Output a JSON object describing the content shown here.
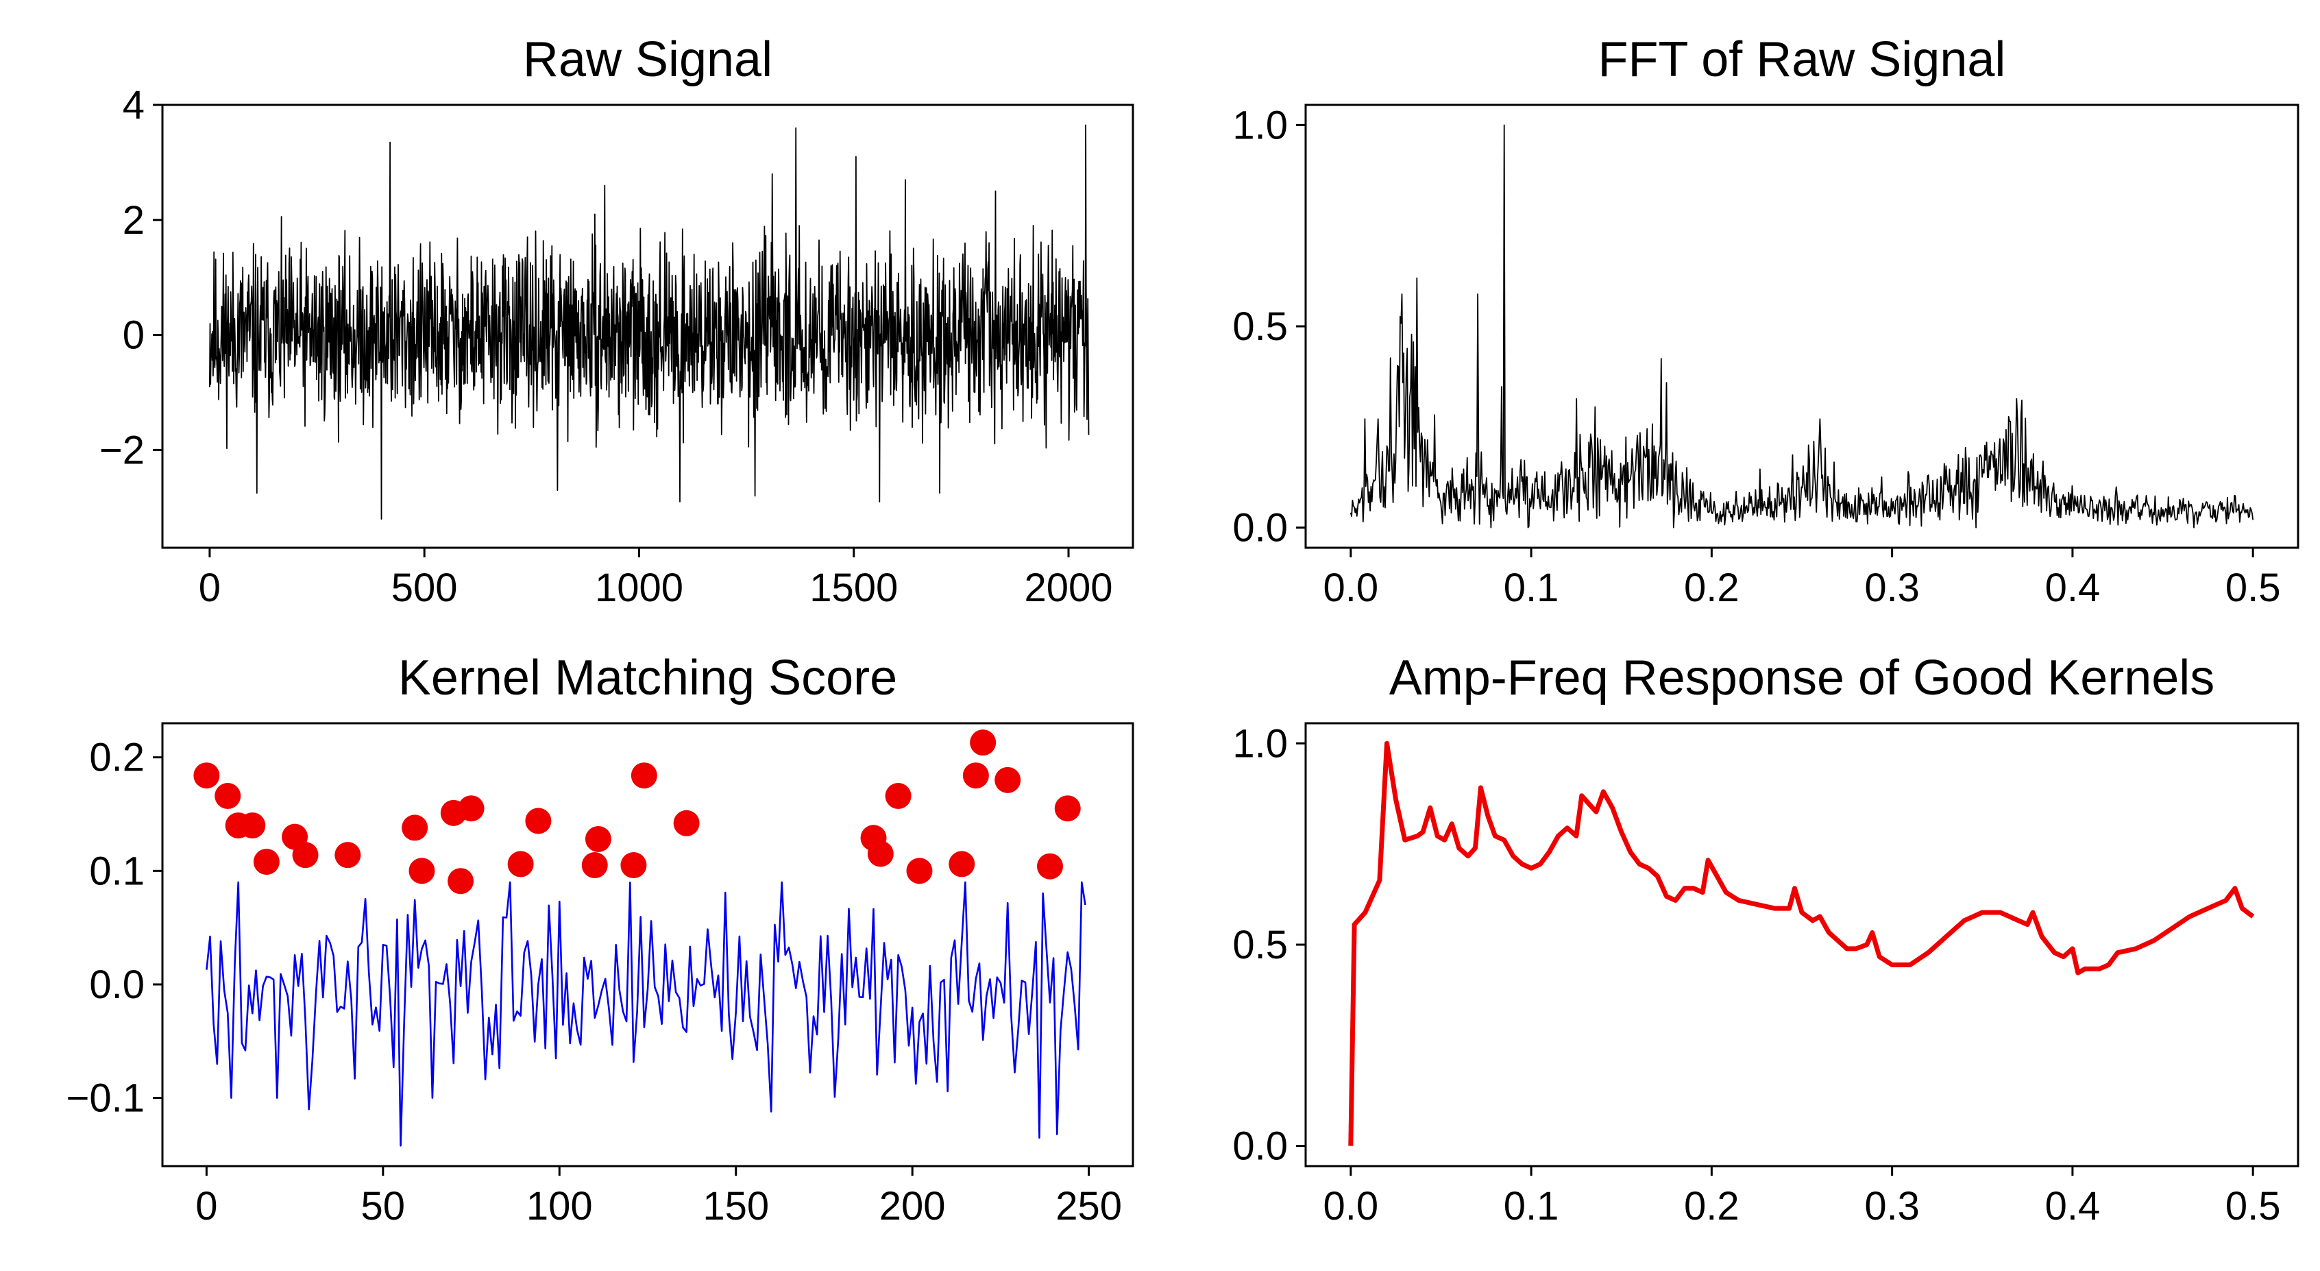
{
  "figure": {
    "background": "#ffffff"
  },
  "chart_data": [
    {
      "type": "line",
      "title": "Raw Signal",
      "xlabel": "",
      "ylabel": "",
      "xlim": [
        -110,
        2150
      ],
      "ylim": [
        -3.7,
        4.0
      ],
      "xticks": [
        0,
        500,
        1000,
        1500,
        2000
      ],
      "xtick_labels": [
        "0",
        "500",
        "1000",
        "1500",
        "2000"
      ],
      "yticks": [
        -2,
        0,
        2,
        4
      ],
      "ytick_labels": [
        "−2",
        "0",
        "2",
        "4"
      ],
      "grid": false,
      "series": [
        {
          "color": "#000000",
          "style": "thin-line",
          "generator": "noise",
          "n": 2048,
          "x_start": 0,
          "x_end": 2047,
          "base": 0,
          "noise_amp": 0.9,
          "bounds": [
            -3.2,
            3.6
          ],
          "seed": 11,
          "spikes": [
            {
              "x": 400,
              "y": -3.2
            },
            {
              "x": 420,
              "y": 3.35
            },
            {
              "x": 1365,
              "y": 3.6
            },
            {
              "x": 2040,
              "y": 3.65
            },
            {
              "x": 1505,
              "y": 3.1
            },
            {
              "x": 1310,
              "y": 2.8
            },
            {
              "x": 1095,
              "y": -2.9
            },
            {
              "x": 1270,
              "y": -2.8
            },
            {
              "x": 1560,
              "y": -2.9
            },
            {
              "x": 810,
              "y": -2.7
            },
            {
              "x": 110,
              "y": -2.75
            },
            {
              "x": 920,
              "y": 2.6
            },
            {
              "x": 1620,
              "y": 2.7
            },
            {
              "x": 1700,
              "y": -2.75
            },
            {
              "x": 1830,
              "y": 2.5
            }
          ]
        }
      ]
    },
    {
      "type": "line",
      "title": "FFT of Raw Signal",
      "xlabel": "",
      "ylabel": "",
      "xlim": [
        -0.025,
        0.525
      ],
      "ylim": [
        -0.05,
        1.05
      ],
      "xticks": [
        0.0,
        0.1,
        0.2,
        0.3,
        0.4,
        0.5
      ],
      "xtick_labels": [
        "0.0",
        "0.1",
        "0.2",
        "0.3",
        "0.4",
        "0.5"
      ],
      "yticks": [
        0.0,
        0.5,
        1.0
      ],
      "ytick_labels": [
        "0.0",
        "0.5",
        "1.0"
      ],
      "grid": false,
      "series": [
        {
          "color": "#000000",
          "style": "thin-line",
          "generator": "envelope-noise",
          "n": 1024,
          "x_start": 0.0,
          "x_end": 0.5,
          "noise_amp": 0.12,
          "bounds": [
            0.0,
            1.0
          ],
          "seed": 7,
          "envelope": [
            [
              0.0,
              0.03
            ],
            [
              0.01,
              0.09
            ],
            [
              0.02,
              0.13
            ],
            [
              0.03,
              0.3
            ],
            [
              0.04,
              0.2
            ],
            [
              0.05,
              0.07
            ],
            [
              0.06,
              0.08
            ],
            [
              0.07,
              0.1
            ],
            [
              0.09,
              0.08
            ],
            [
              0.1,
              0.08
            ],
            [
              0.12,
              0.1
            ],
            [
              0.13,
              0.14
            ],
            [
              0.15,
              0.1
            ],
            [
              0.17,
              0.17
            ],
            [
              0.18,
              0.1
            ],
            [
              0.2,
              0.04
            ],
            [
              0.22,
              0.05
            ],
            [
              0.24,
              0.06
            ],
            [
              0.26,
              0.12
            ],
            [
              0.27,
              0.06
            ],
            [
              0.3,
              0.05
            ],
            [
              0.32,
              0.08
            ],
            [
              0.35,
              0.11
            ],
            [
              0.37,
              0.17
            ],
            [
              0.38,
              0.09
            ],
            [
              0.4,
              0.05
            ],
            [
              0.45,
              0.04
            ],
            [
              0.5,
              0.04
            ]
          ],
          "spikes": [
            {
              "x": 0.0852,
              "y": 1.0
            },
            {
              "x": 0.0365,
              "y": 0.62
            },
            {
              "x": 0.0285,
              "y": 0.58
            },
            {
              "x": 0.0705,
              "y": 0.58
            },
            {
              "x": 0.0335,
              "y": 0.48
            },
            {
              "x": 0.0262,
              "y": 0.4
            },
            {
              "x": 0.0838,
              "y": 0.35
            },
            {
              "x": 0.172,
              "y": 0.42
            },
            {
              "x": 0.175,
              "y": 0.36
            },
            {
              "x": 0.369,
              "y": 0.32
            },
            {
              "x": 0.26,
              "y": 0.27
            },
            {
              "x": 0.125,
              "y": 0.32
            },
            {
              "x": 0.008,
              "y": 0.27
            },
            {
              "x": 0.015,
              "y": 0.27
            },
            {
              "x": 0.0465,
              "y": 0.28
            },
            {
              "x": 0.1355,
              "y": 0.3
            }
          ]
        }
      ]
    },
    {
      "type": "line",
      "title": "Kernel Matching Score",
      "xlabel": "",
      "ylabel": "",
      "xlim": [
        -12.5,
        262.5
      ],
      "ylim": [
        -0.16,
        0.23
      ],
      "xticks": [
        0,
        50,
        100,
        150,
        200,
        250
      ],
      "xtick_labels": [
        "0",
        "50",
        "100",
        "150",
        "200",
        "250"
      ],
      "yticks": [
        -0.1,
        0.0,
        0.1,
        0.2
      ],
      "ytick_labels": [
        "−0.1",
        "0.0",
        "0.1",
        "0.2"
      ],
      "grid": false,
      "series": [
        {
          "color": "#0000ee",
          "style": "line",
          "generator": "noise",
          "n": 250,
          "x_start": 0,
          "x_end": 249,
          "base": 0.0,
          "noise_amp": 0.05,
          "bounds": [
            -0.1,
            0.09
          ],
          "seed": 3,
          "spikes": [
            {
              "x": 55,
              "y": -0.142
            },
            {
              "x": 236,
              "y": -0.135
            },
            {
              "x": 241,
              "y": -0.132
            },
            {
              "x": 160,
              "y": -0.112
            },
            {
              "x": 7,
              "y": -0.1
            },
            {
              "x": 20,
              "y": -0.1
            },
            {
              "x": 29,
              "y": -0.11
            },
            {
              "x": 64,
              "y": -0.1
            },
            {
              "x": 249,
              "y": 0.07
            },
            {
              "x": 3,
              "y": -0.07
            }
          ]
        }
      ],
      "markers": {
        "color": "#ee0000",
        "points": [
          {
            "x": 0,
            "y": 0.184
          },
          {
            "x": 6,
            "y": 0.166
          },
          {
            "x": 9,
            "y": 0.14
          },
          {
            "x": 13,
            "y": 0.14
          },
          {
            "x": 17,
            "y": 0.108
          },
          {
            "x": 25,
            "y": 0.13
          },
          {
            "x": 28,
            "y": 0.114
          },
          {
            "x": 40,
            "y": 0.114
          },
          {
            "x": 59,
            "y": 0.138
          },
          {
            "x": 61,
            "y": 0.1
          },
          {
            "x": 70,
            "y": 0.151
          },
          {
            "x": 72,
            "y": 0.091
          },
          {
            "x": 75,
            "y": 0.155
          },
          {
            "x": 89,
            "y": 0.106
          },
          {
            "x": 94,
            "y": 0.144
          },
          {
            "x": 110,
            "y": 0.105
          },
          {
            "x": 111,
            "y": 0.128
          },
          {
            "x": 121,
            "y": 0.105
          },
          {
            "x": 124,
            "y": 0.184
          },
          {
            "x": 136,
            "y": 0.142
          },
          {
            "x": 189,
            "y": 0.129
          },
          {
            "x": 191,
            "y": 0.115
          },
          {
            "x": 196,
            "y": 0.166
          },
          {
            "x": 202,
            "y": 0.1
          },
          {
            "x": 214,
            "y": 0.106
          },
          {
            "x": 218,
            "y": 0.184
          },
          {
            "x": 220,
            "y": 0.213
          },
          {
            "x": 227,
            "y": 0.18
          },
          {
            "x": 239,
            "y": 0.104
          },
          {
            "x": 244,
            "y": 0.155
          }
        ]
      }
    },
    {
      "type": "line",
      "title": "Amp-Freq Response of Good Kernels",
      "xlabel": "",
      "ylabel": "",
      "xlim": [
        -0.025,
        0.525
      ],
      "ylim": [
        -0.05,
        1.05
      ],
      "xticks": [
        0.0,
        0.1,
        0.2,
        0.3,
        0.4,
        0.5
      ],
      "xtick_labels": [
        "0.0",
        "0.1",
        "0.2",
        "0.3",
        "0.4",
        "0.5"
      ],
      "yticks": [
        0.0,
        0.5,
        1.0
      ],
      "ytick_labels": [
        "0.0",
        "0.5",
        "1.0"
      ],
      "grid": false,
      "series": [
        {
          "color": "#ee0000",
          "style": "thick-line",
          "generator": "points",
          "points": [
            [
              0.0,
              0.0
            ],
            [
              0.002,
              0.55
            ],
            [
              0.004,
              0.56
            ],
            [
              0.008,
              0.58
            ],
            [
              0.012,
              0.62
            ],
            [
              0.016,
              0.66
            ],
            [
              0.02,
              1.0
            ],
            [
              0.025,
              0.86
            ],
            [
              0.03,
              0.76
            ],
            [
              0.037,
              0.77
            ],
            [
              0.04,
              0.78
            ],
            [
              0.044,
              0.84
            ],
            [
              0.048,
              0.77
            ],
            [
              0.052,
              0.76
            ],
            [
              0.056,
              0.8
            ],
            [
              0.06,
              0.74
            ],
            [
              0.065,
              0.72
            ],
            [
              0.069,
              0.74
            ],
            [
              0.072,
              0.89
            ],
            [
              0.076,
              0.82
            ],
            [
              0.08,
              0.77
            ],
            [
              0.085,
              0.76
            ],
            [
              0.09,
              0.72
            ],
            [
              0.095,
              0.7
            ],
            [
              0.1,
              0.69
            ],
            [
              0.105,
              0.7
            ],
            [
              0.11,
              0.73
            ],
            [
              0.115,
              0.77
            ],
            [
              0.12,
              0.79
            ],
            [
              0.125,
              0.77
            ],
            [
              0.128,
              0.87
            ],
            [
              0.132,
              0.85
            ],
            [
              0.136,
              0.83
            ],
            [
              0.14,
              0.88
            ],
            [
              0.145,
              0.84
            ],
            [
              0.15,
              0.78
            ],
            [
              0.155,
              0.73
            ],
            [
              0.16,
              0.7
            ],
            [
              0.165,
              0.69
            ],
            [
              0.17,
              0.67
            ],
            [
              0.175,
              0.62
            ],
            [
              0.18,
              0.61
            ],
            [
              0.185,
              0.64
            ],
            [
              0.19,
              0.64
            ],
            [
              0.195,
              0.63
            ],
            [
              0.198,
              0.71
            ],
            [
              0.203,
              0.67
            ],
            [
              0.208,
              0.63
            ],
            [
              0.215,
              0.61
            ],
            [
              0.225,
              0.6
            ],
            [
              0.235,
              0.59
            ],
            [
              0.243,
              0.59
            ],
            [
              0.246,
              0.64
            ],
            [
              0.25,
              0.58
            ],
            [
              0.256,
              0.56
            ],
            [
              0.26,
              0.57
            ],
            [
              0.265,
              0.53
            ],
            [
              0.27,
              0.51
            ],
            [
              0.275,
              0.49
            ],
            [
              0.28,
              0.49
            ],
            [
              0.286,
              0.5
            ],
            [
              0.289,
              0.53
            ],
            [
              0.293,
              0.47
            ],
            [
              0.3,
              0.45
            ],
            [
              0.31,
              0.45
            ],
            [
              0.32,
              0.48
            ],
            [
              0.33,
              0.52
            ],
            [
              0.34,
              0.56
            ],
            [
              0.35,
              0.58
            ],
            [
              0.36,
              0.58
            ],
            [
              0.37,
              0.56
            ],
            [
              0.375,
              0.55
            ],
            [
              0.378,
              0.58
            ],
            [
              0.383,
              0.52
            ],
            [
              0.39,
              0.48
            ],
            [
              0.395,
              0.47
            ],
            [
              0.4,
              0.49
            ],
            [
              0.403,
              0.43
            ],
            [
              0.407,
              0.44
            ],
            [
              0.415,
              0.44
            ],
            [
              0.42,
              0.45
            ],
            [
              0.425,
              0.48
            ],
            [
              0.435,
              0.49
            ],
            [
              0.445,
              0.51
            ],
            [
              0.455,
              0.54
            ],
            [
              0.465,
              0.57
            ],
            [
              0.475,
              0.59
            ],
            [
              0.485,
              0.61
            ],
            [
              0.49,
              0.64
            ],
            [
              0.494,
              0.59
            ],
            [
              0.5,
              0.57
            ]
          ]
        }
      ]
    }
  ]
}
